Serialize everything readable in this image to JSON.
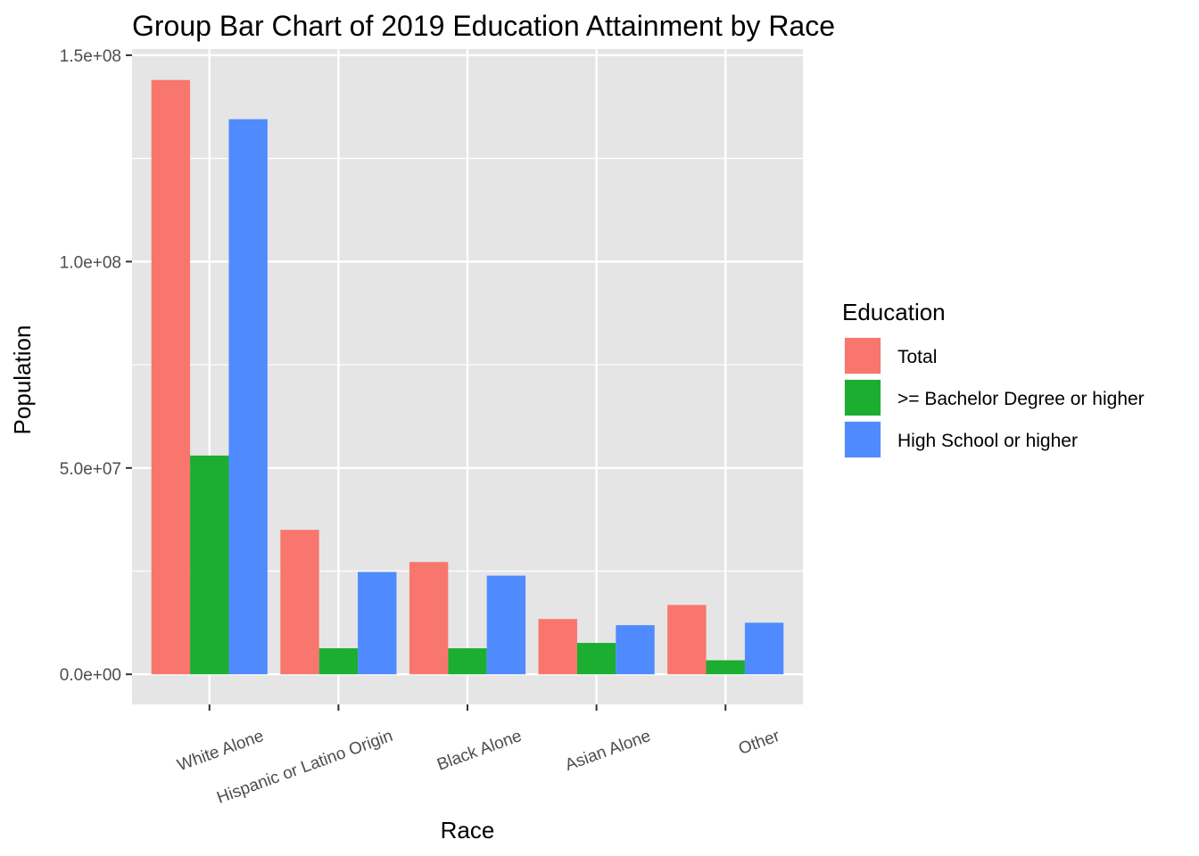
{
  "chart_data": {
    "type": "bar",
    "title": "Group Bar Chart of 2019 Education Attainment by Race",
    "xlabel": "Race",
    "ylabel": "Population",
    "categories": [
      "White Alone",
      "Hispanic or Latino Origin",
      "Black Alone",
      "Asian Alone",
      "Other"
    ],
    "series": [
      {
        "name": "Total",
        "color": "#F8766D",
        "values": [
          144000000,
          35000000,
          27200000,
          13400000,
          16800000
        ]
      },
      {
        "name": ">= Bachelor Degree or higher",
        "color": "#1BAE31",
        "values": [
          53000000,
          6300000,
          6300000,
          7600000,
          3400000
        ]
      },
      {
        "name": "High School or higher",
        "color": "#4F8BFF",
        "values": [
          134500000,
          24800000,
          23900000,
          11900000,
          12500000
        ]
      }
    ],
    "ylim": [
      -7300000,
      151500000
    ],
    "yticks": [
      0,
      50000000,
      100000000,
      150000000
    ],
    "ytick_labels": [
      "0.0e+00",
      "5.0e+07",
      "1.0e+08",
      "1.5e+08"
    ],
    "grid": true,
    "panel_background": "#E5E5E5",
    "legend": {
      "title": "Education",
      "position": "right"
    }
  }
}
